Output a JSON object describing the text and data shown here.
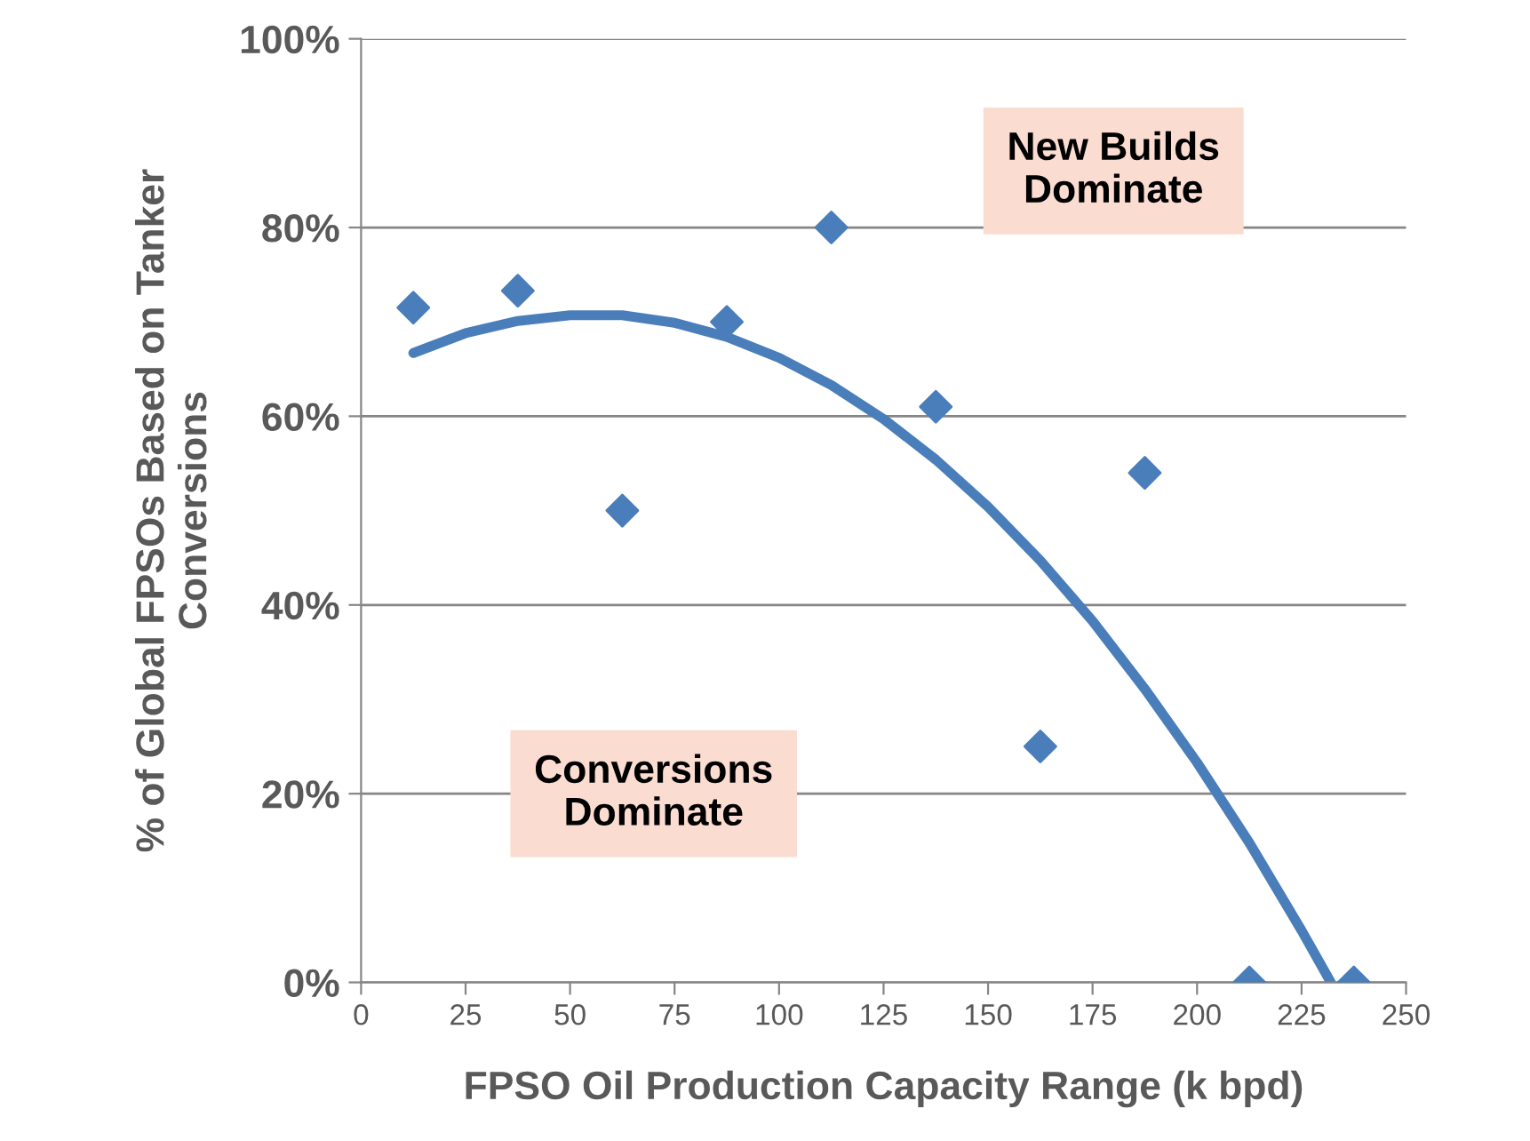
{
  "chart_data": {
    "type": "scatter",
    "xlabel": "FPSO Oil Production Capacity Range (k bpd)",
    "ylabel": "% of Global FPSOs Based on Tanker\nConversions",
    "xlim": [
      0,
      250
    ],
    "xticks": [
      0,
      25,
      50,
      75,
      100,
      125,
      150,
      175,
      200,
      225,
      250
    ],
    "ylim": [
      0,
      100
    ],
    "yticks": [
      {
        "value": 0,
        "label": "0%"
      },
      {
        "value": 20,
        "label": "20%"
      },
      {
        "value": 40,
        "label": "40%"
      },
      {
        "value": 60,
        "label": "60%"
      },
      {
        "value": 80,
        "label": "80%"
      },
      {
        "value": 100,
        "label": "100%"
      }
    ],
    "grid": "y",
    "marker": "diamond",
    "legend": false,
    "series": [
      {
        "color": "#4a7ebb",
        "x": [
          12.5,
          37.5,
          62.5,
          87.5,
          112.5,
          137.5,
          162.5,
          187.5,
          212.5,
          237.5
        ],
        "values": [
          71.5,
          73.3,
          50,
          70,
          80,
          61,
          25,
          54,
          0,
          0
        ]
      },
      {
        "type": "line",
        "marker": "none",
        "color": "#4a7ebb",
        "x": [
          12.5,
          25,
          37.5,
          50,
          62.5,
          75,
          87.5,
          100,
          112.5,
          125,
          137.5,
          150,
          162.5,
          175,
          187.5,
          200,
          212.5,
          225,
          232
        ],
        "values": [
          66.7,
          68.8,
          70.1,
          70.7,
          70.7,
          69.9,
          68.4,
          66.2,
          63.3,
          59.7,
          55.4,
          50.4,
          44.7,
          38.3,
          31.1,
          23.3,
          14.8,
          5.5,
          0
        ]
      }
    ],
    "annotations": [
      "New Builds\nDominate",
      "Conversions\nDominate"
    ]
  }
}
